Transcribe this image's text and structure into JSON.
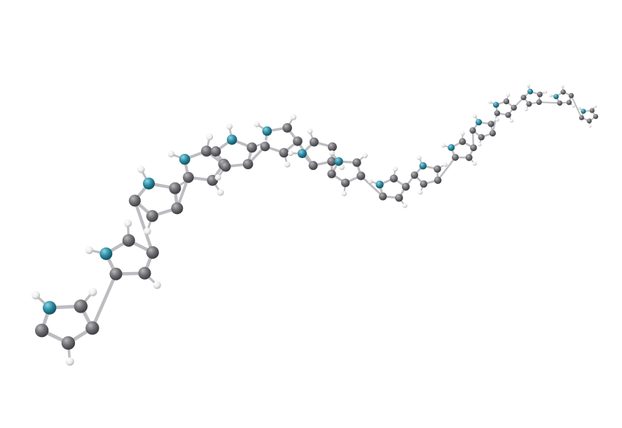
{
  "scene": {
    "description_hidden": "",
    "background": "#ffffff",
    "colors": {
      "carbon": "#6e6e72",
      "nitrogen": "#2a8aa0",
      "hydrogen": "#f2f2f2",
      "bond": "#bdbdc1"
    },
    "icon_names": [
      "carbon-atom-icon",
      "nitrogen-atom-icon",
      "hydrogen-atom-icon"
    ]
  }
}
